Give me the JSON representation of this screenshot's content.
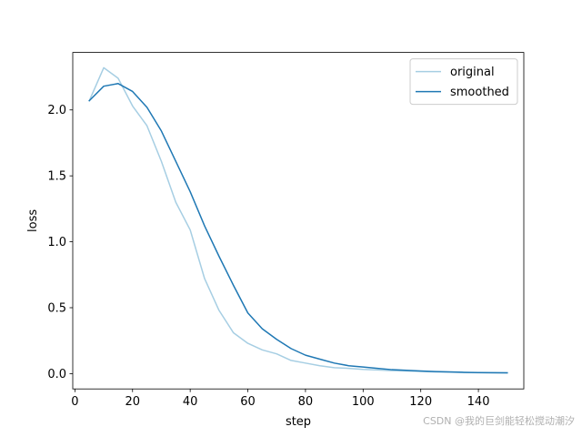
{
  "chart_data": {
    "type": "line",
    "xlabel": "step",
    "ylabel": "loss",
    "xlim": [
      -0.75,
      155.75
    ],
    "ylim": [
      -0.116,
      2.436
    ],
    "x_ticks": [
      0,
      20,
      40,
      60,
      80,
      100,
      120,
      140
    ],
    "y_ticks": [
      0.0,
      0.5,
      1.0,
      1.5,
      2.0
    ],
    "x_tick_labels": [
      "0",
      "20",
      "40",
      "60",
      "80",
      "100",
      "120",
      "140"
    ],
    "y_tick_labels": [
      "0.0",
      "0.5",
      "1.0",
      "1.5",
      "2.0"
    ],
    "grid": false,
    "legend_position": "top-right",
    "x": [
      5,
      10,
      15,
      20,
      25,
      30,
      35,
      40,
      45,
      50,
      55,
      60,
      65,
      70,
      75,
      80,
      85,
      90,
      95,
      100,
      105,
      110,
      115,
      120,
      125,
      130,
      135,
      140,
      145,
      150
    ],
    "series": [
      {
        "name": "original",
        "color": "#a6cee3",
        "values": [
          2.07,
          2.32,
          2.24,
          2.03,
          1.88,
          1.61,
          1.3,
          1.09,
          0.72,
          0.48,
          0.31,
          0.23,
          0.18,
          0.15,
          0.1,
          0.08,
          0.06,
          0.045,
          0.04,
          0.032,
          0.028,
          0.023,
          0.02,
          0.017,
          0.013,
          0.011,
          0.009,
          0.007,
          0.006,
          0.005
        ]
      },
      {
        "name": "smoothed",
        "color": "#1f78b4",
        "values": [
          2.07,
          2.18,
          2.2,
          2.14,
          2.02,
          1.84,
          1.61,
          1.38,
          1.12,
          0.89,
          0.67,
          0.46,
          0.34,
          0.26,
          0.19,
          0.14,
          0.11,
          0.08,
          0.06,
          0.05,
          0.04,
          0.03,
          0.025,
          0.02,
          0.016,
          0.013,
          0.01,
          0.008,
          0.007,
          0.006
        ]
      }
    ]
  },
  "watermark": "CSDN @我的巨剑能轻松搅动潮汐"
}
